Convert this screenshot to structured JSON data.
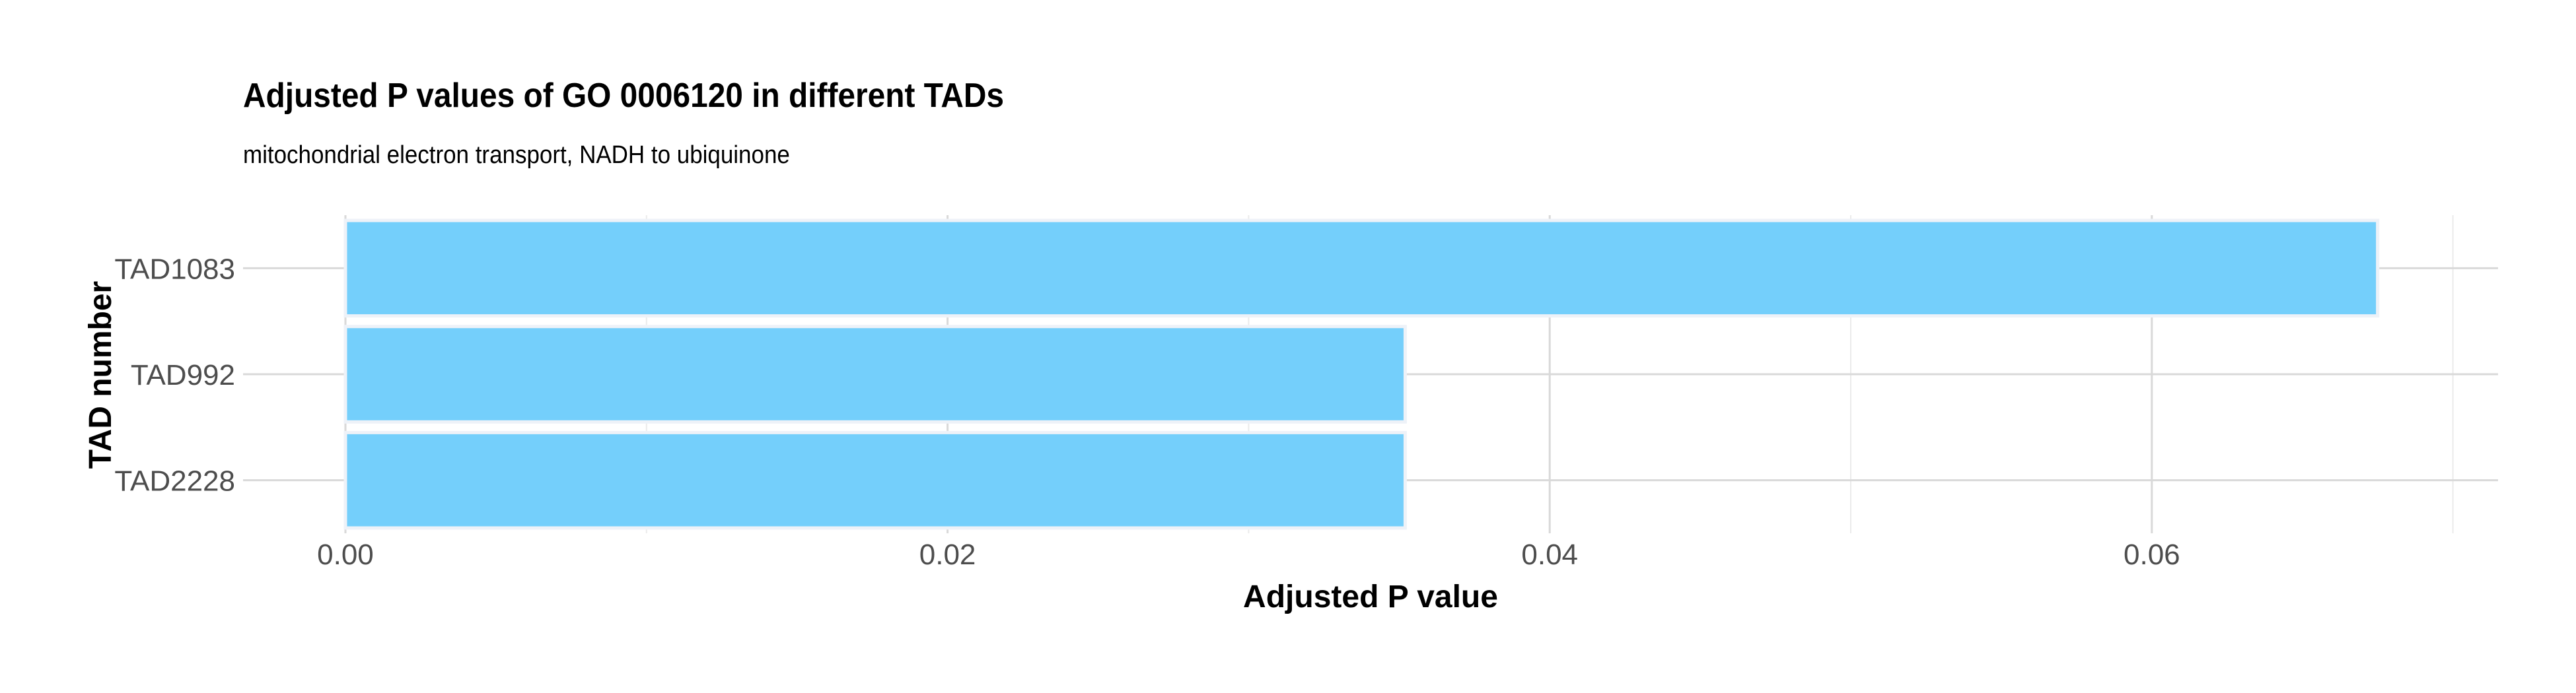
{
  "chart_data": {
    "type": "bar",
    "orientation": "horizontal",
    "title": "Adjusted P values of GO 0006120 in different TADs",
    "subtitle": "mitochondrial electron transport, NADH to ubiquinone",
    "xlabel": "Adjusted P value",
    "ylabel": "TAD number",
    "categories": [
      "TAD1083",
      "TAD992",
      "TAD2228"
    ],
    "values": [
      0.0675,
      0.0352,
      0.0352
    ],
    "xlim": [
      -0.0034,
      0.0715
    ],
    "xticks": [
      0.0,
      0.02,
      0.04,
      0.06
    ],
    "xtick_labels": [
      "0.00",
      "0.02",
      "0.04",
      "0.06"
    ],
    "grid": true,
    "legend": "none",
    "colors": {
      "bar_fill": "#74cffb",
      "bar_outline": "#eef2f8",
      "grid_major": "#d9d9d9",
      "grid_minor": "#ebebeb"
    }
  }
}
